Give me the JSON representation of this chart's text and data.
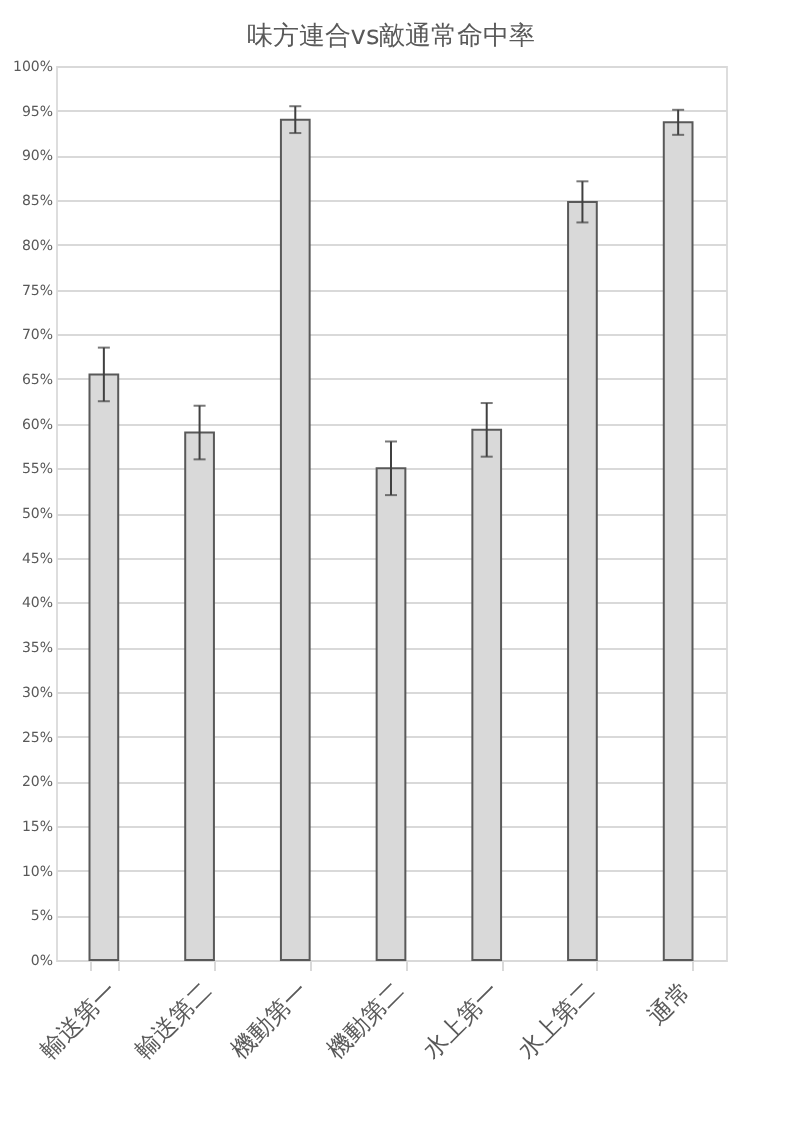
{
  "chart_data": {
    "type": "bar",
    "title": "味方連合vs敵通常命中率",
    "categories": [
      "輸送第一",
      "輸送第二",
      "機動第一",
      "機動第二",
      "水上第一",
      "水上第二",
      "通常"
    ],
    "values": [
      65.5,
      59,
      94,
      55,
      59.3,
      84.8,
      93.7
    ],
    "errors": [
      3,
      3,
      1.5,
      3,
      3,
      2.3,
      1.4
    ],
    "color": "#d9d9d9",
    "ylim": [
      0,
      100
    ],
    "yticks": [
      {
        "value": 0,
        "label": "0%"
      },
      {
        "value": 5,
        "label": "5%"
      },
      {
        "value": 10,
        "label": "10%"
      },
      {
        "value": 15,
        "label": "15%"
      },
      {
        "value": 20,
        "label": "20%"
      },
      {
        "value": 25,
        "label": "25%"
      },
      {
        "value": 30,
        "label": "30%"
      },
      {
        "value": 35,
        "label": "35%"
      },
      {
        "value": 40,
        "label": "40%"
      },
      {
        "value": 45,
        "label": "45%"
      },
      {
        "value": 50,
        "label": "50%"
      },
      {
        "value": 55,
        "label": "55%"
      },
      {
        "value": 60,
        "label": "60%"
      },
      {
        "value": 65,
        "label": "65%"
      },
      {
        "value": 70,
        "label": "70%"
      },
      {
        "value": 75,
        "label": "75%"
      },
      {
        "value": 80,
        "label": "80%"
      },
      {
        "value": 85,
        "label": "85%"
      },
      {
        "value": 90,
        "label": "90%"
      },
      {
        "value": 95,
        "label": "95%"
      },
      {
        "value": 100,
        "label": "100%"
      }
    ],
    "grid": "y"
  }
}
